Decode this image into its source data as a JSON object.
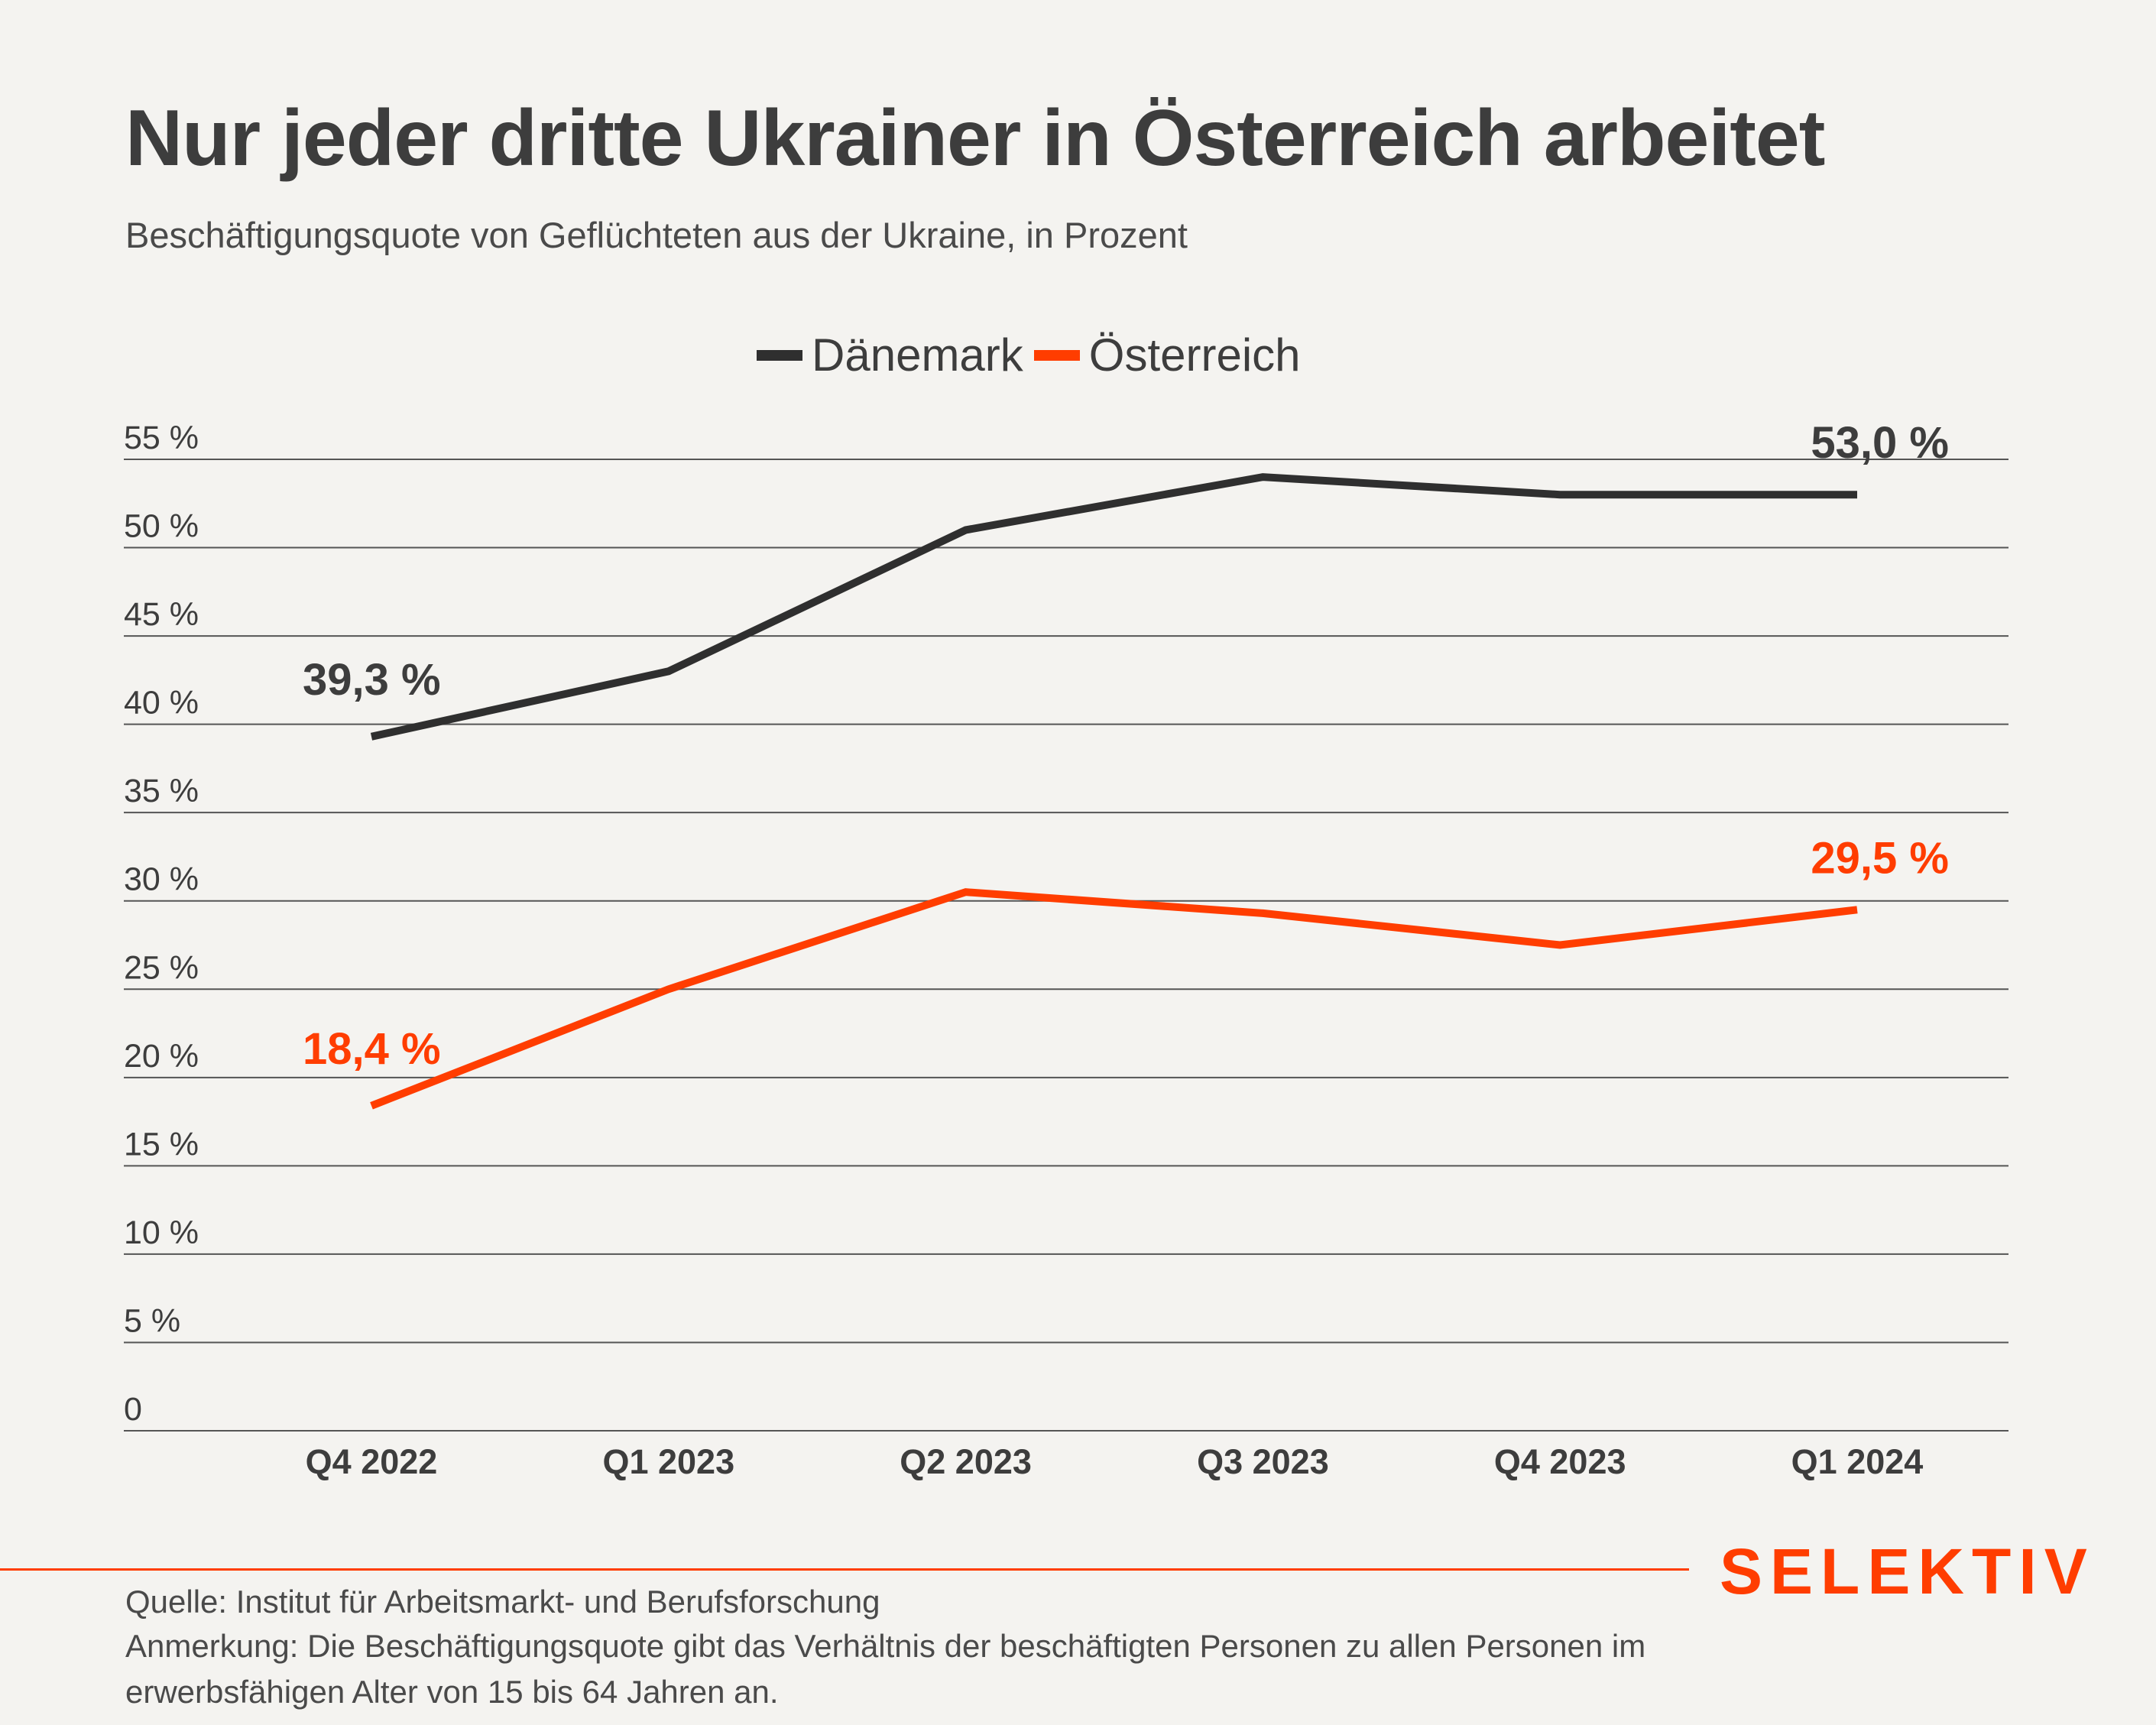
{
  "header": {
    "title": "Nur jeder dritte Ukrainer in Österreich arbeitet",
    "subtitle": "Beschäftigungsquote von Geflüchteten aus der Ukraine, in Prozent"
  },
  "colors": {
    "background": "#f4f3f0",
    "daenemark": "#2f2f2f",
    "oesterreich": "#ff3d00",
    "text": "#3d3d3d"
  },
  "chart_data": {
    "type": "line",
    "title": "Nur jeder dritte Ukrainer in Österreich arbeitet",
    "subtitle": "Beschäftigungsquote von Geflüchteten aus der Ukraine, in Prozent",
    "categories": [
      "Q4 2022",
      "Q1 2023",
      "Q2 2023",
      "Q3 2023",
      "Q4 2023",
      "Q1 2024"
    ],
    "ylim": [
      0,
      55
    ],
    "yticks": [
      0,
      5,
      10,
      15,
      20,
      25,
      30,
      35,
      40,
      45,
      50,
      55
    ],
    "ytick_labels": [
      "0",
      "5 %",
      "10 %",
      "15 %",
      "20 %",
      "25 %",
      "30 %",
      "35 %",
      "40 %",
      "45 %",
      "50 %",
      "55 %"
    ],
    "grid": "horizontal",
    "legend": "top-center",
    "series": [
      {
        "name": "Dänemark",
        "color": "#2f2f2f",
        "values": [
          39.3,
          43.0,
          51.0,
          54.0,
          53.0,
          53.0
        ],
        "labels": {
          "first": "39,3 %",
          "last": "53,0 %"
        }
      },
      {
        "name": "Österreich",
        "color": "#ff3d00",
        "values": [
          18.4,
          25.0,
          30.5,
          29.3,
          27.5,
          29.5
        ],
        "labels": {
          "first": "18,4 %",
          "last": "29,5 %"
        }
      }
    ]
  },
  "footer": {
    "source": "Quelle: Institut für Arbeitsmarkt- und Berufsforschung",
    "note_line1": "Anmerkung: Die Beschäftigungsquote gibt das Verhältnis der beschäftigten Personen zu allen Personen im",
    "note_line2": "erwerbsfähigen Alter von 15 bis 64 Jahren an.",
    "logo": "SELEKTIV"
  }
}
